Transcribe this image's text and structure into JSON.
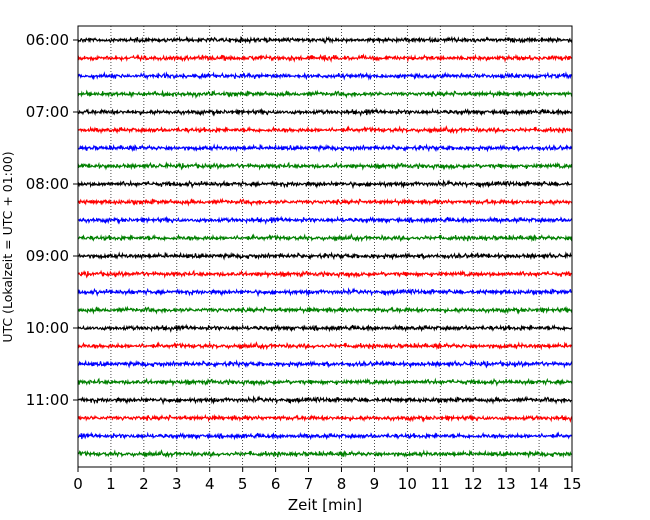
{
  "chart_data": {
    "type": "line",
    "title": "",
    "xlabel": "Zeit  [min]",
    "ylabel": "UTC (Lokalzeit = UTC + 01:00)",
    "xlim": [
      0,
      15
    ],
    "x_ticks": [
      "0",
      "1",
      "2",
      "3",
      "4",
      "5",
      "6",
      "7",
      "8",
      "9",
      "10",
      "11",
      "12",
      "13",
      "14",
      "15"
    ],
    "y_tick_labels": [
      "06:00",
      "07:00",
      "08:00",
      "09:00",
      "10:00",
      "11:00"
    ],
    "grid": "vertical-dotted",
    "legend": "none",
    "trace_colors": [
      "#000000",
      "#ff0000",
      "#0000ff",
      "#008000"
    ],
    "trace_start_times": [
      "06:00",
      "06:15",
      "06:30",
      "06:45",
      "07:00",
      "07:15",
      "07:30",
      "07:45",
      "08:00",
      "08:15",
      "08:30",
      "08:45",
      "09:00",
      "09:15",
      "09:30",
      "09:45",
      "10:00",
      "10:15",
      "10:30",
      "10:45",
      "11:00",
      "11:15",
      "11:30",
      "11:45"
    ]
  }
}
